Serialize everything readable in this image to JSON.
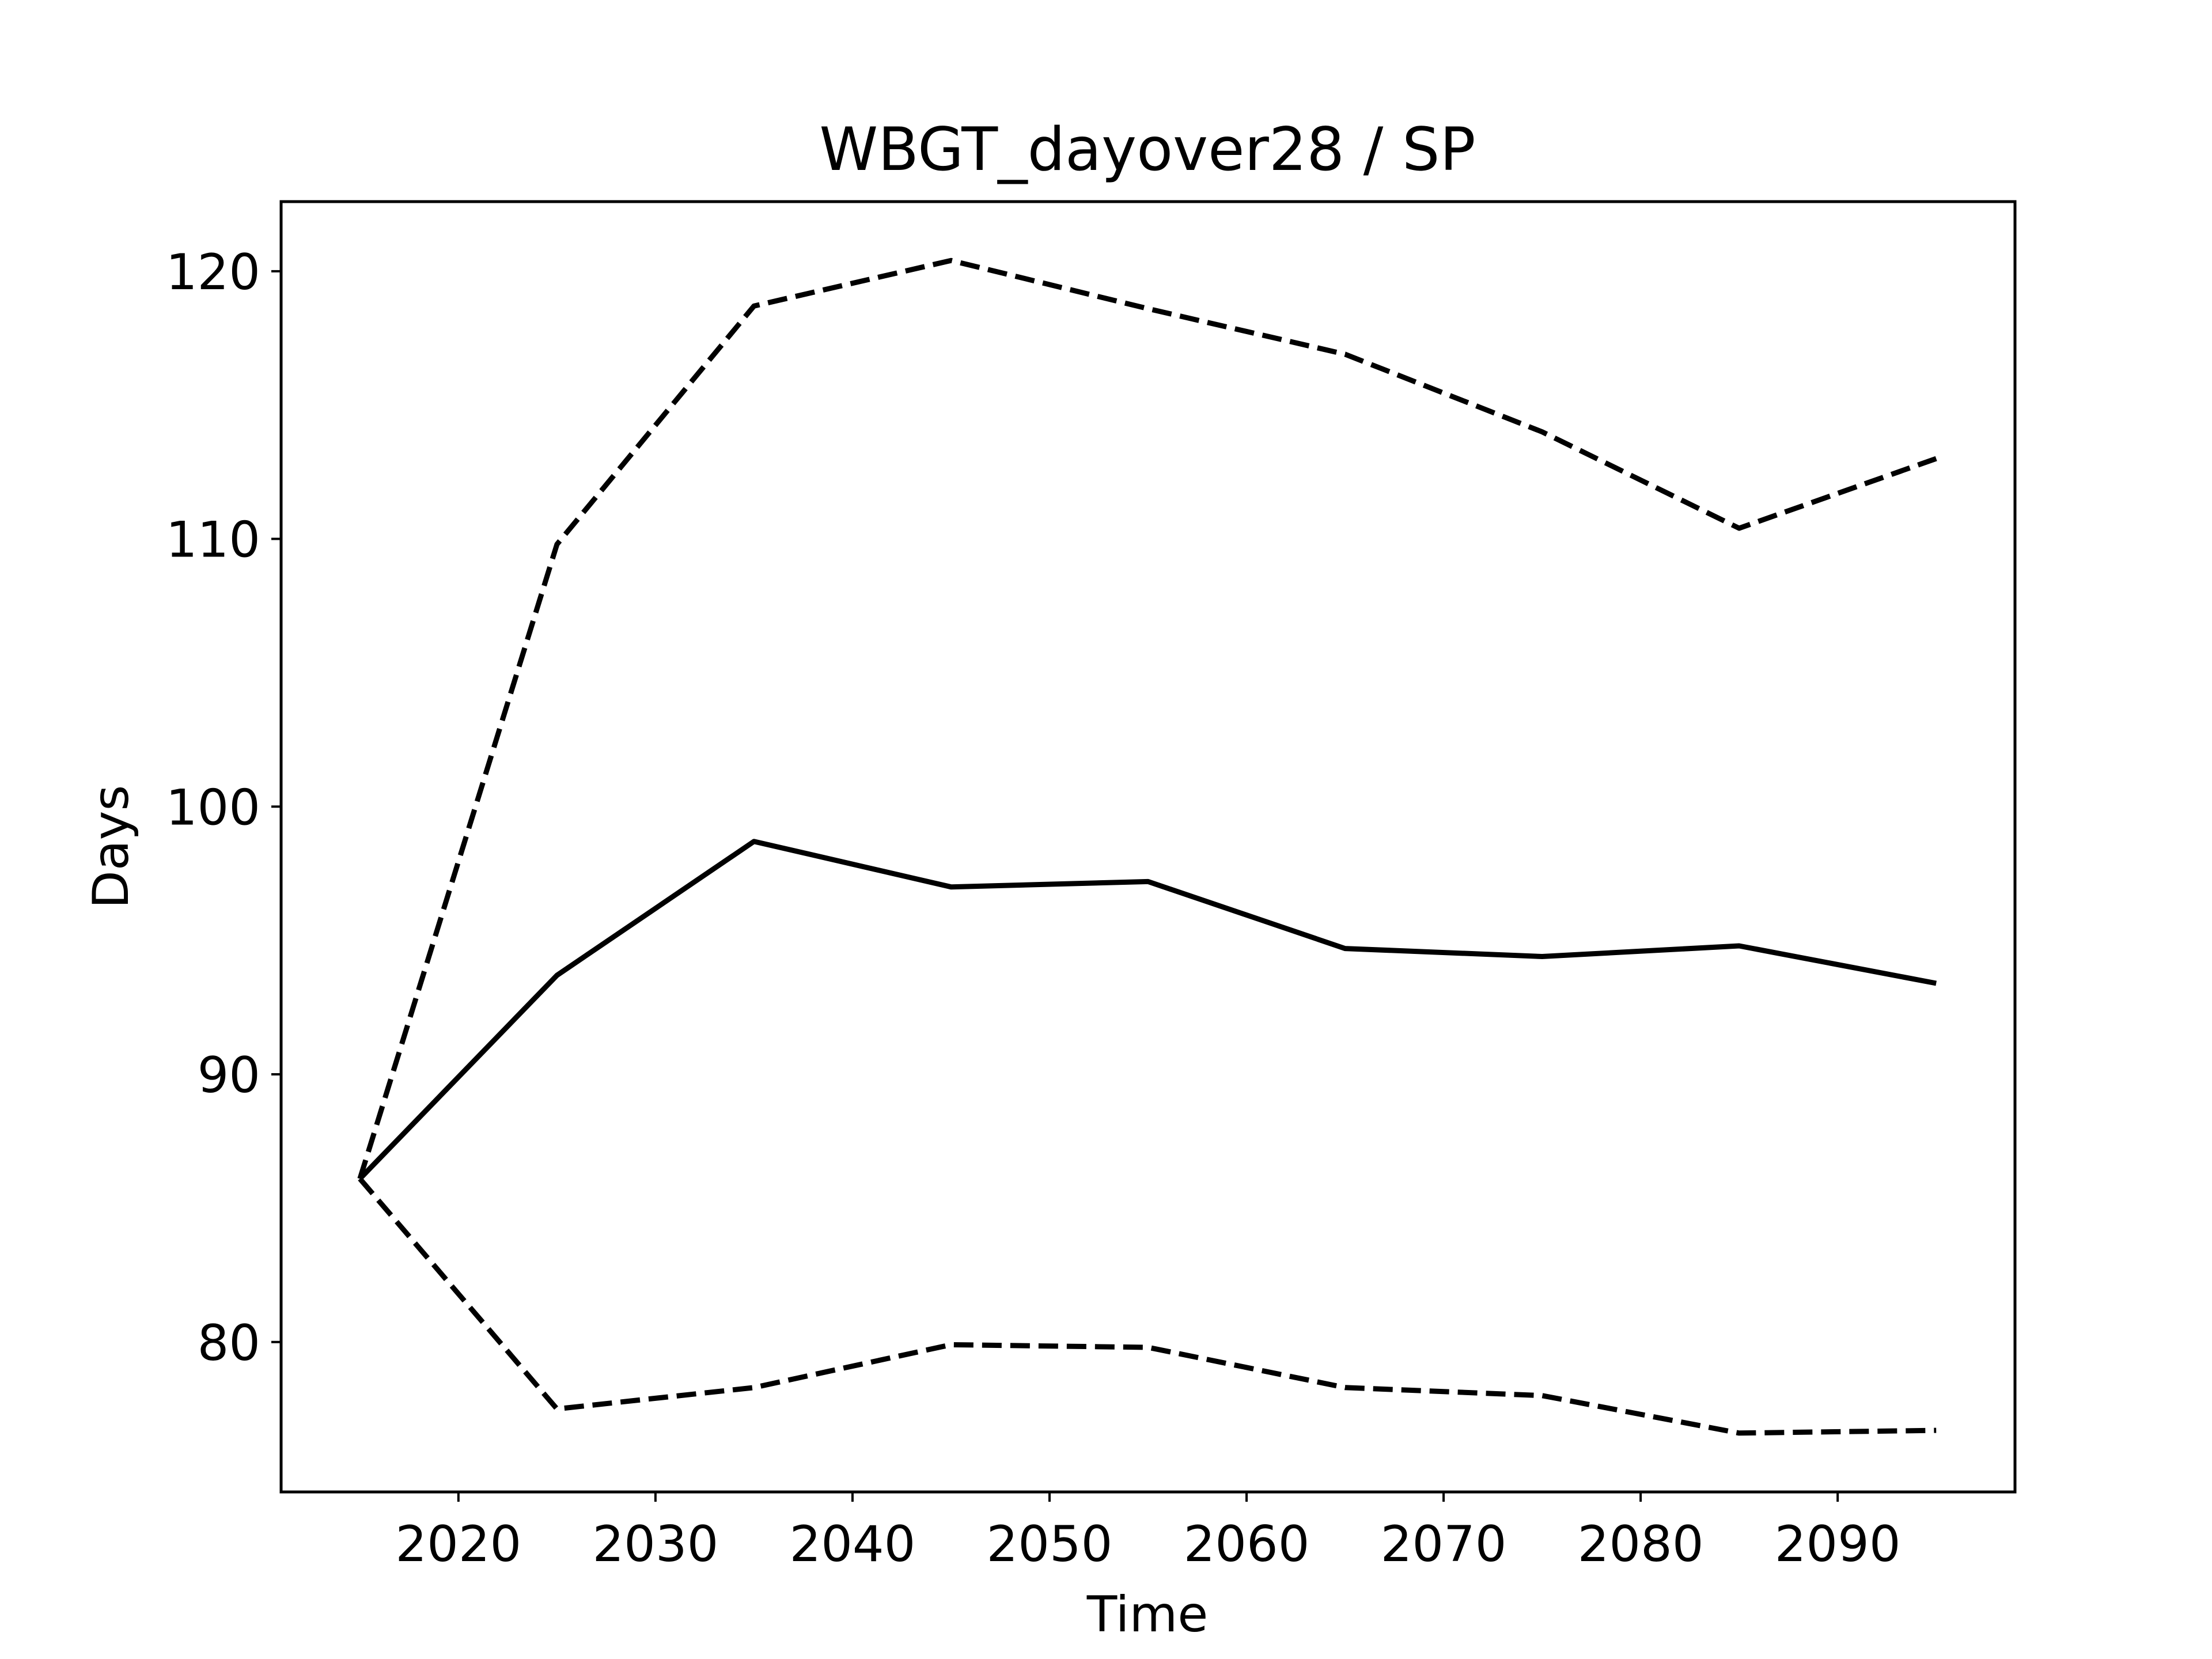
{
  "chart_data": {
    "type": "line",
    "title": "WBGT_dayover28 / SP",
    "xlabel": "Time",
    "ylabel": "Days",
    "xlim": [
      2011,
      2099
    ],
    "ylim": [
      74.4,
      122.6
    ],
    "xticks": [
      2020,
      2030,
      2040,
      2050,
      2060,
      2070,
      2080,
      2090
    ],
    "yticks": [
      80,
      90,
      100,
      110,
      120
    ],
    "grid": false,
    "legend": false,
    "x": [
      2015,
      2025,
      2035,
      2045,
      2055,
      2065,
      2075,
      2085,
      2095
    ],
    "series": [
      {
        "style": "dashed",
        "color": "#000000",
        "values": [
          86.1,
          109.8,
          118.7,
          120.4,
          118.6,
          116.9,
          114.0,
          110.4,
          113.0
        ]
      },
      {
        "style": "solid",
        "color": "#000000",
        "values": [
          86.1,
          93.7,
          98.7,
          97.0,
          97.2,
          94.7,
          94.4,
          94.8,
          93.4
        ]
      },
      {
        "style": "dashed",
        "color": "#000000",
        "values": [
          86.1,
          77.5,
          78.3,
          79.9,
          79.8,
          78.3,
          78.0,
          76.6,
          76.7
        ]
      }
    ]
  }
}
